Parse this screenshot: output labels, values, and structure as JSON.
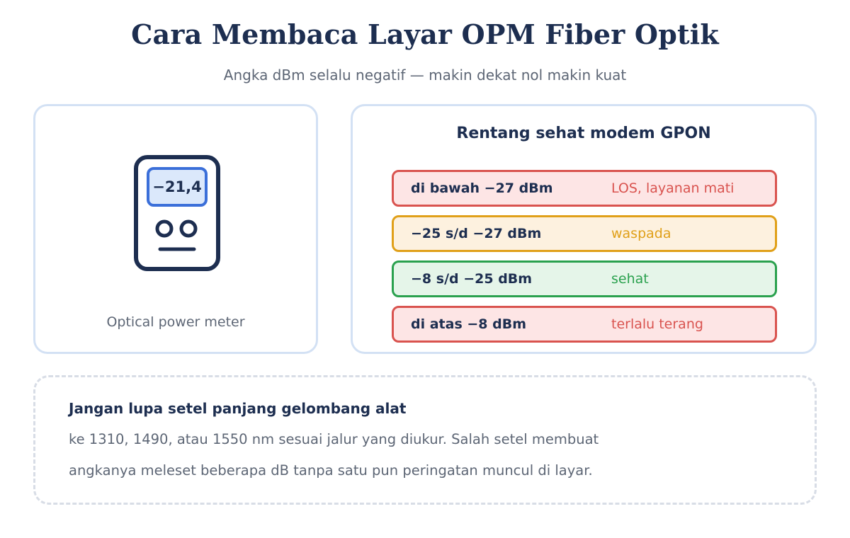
{
  "header": {
    "title": "Cara Membaca Layar OPM Fiber Optik",
    "subtitle": "Angka dBm selalu negatif — makin dekat nol makin kuat"
  },
  "device_card": {
    "reading": "−21,4",
    "caption": "Optical power meter",
    "icon": "optical-power-meter-icon"
  },
  "range_card": {
    "title": "Rentang sehat modem GPON",
    "rows": [
      {
        "range": "di bawah −27 dBm",
        "status": "LOS, layanan mati",
        "color": "#d9534f",
        "bg": "#fde5e5"
      },
      {
        "range": "−25 s/d −27 dBm",
        "status": "waspada",
        "color": "#e0a019",
        "bg": "#fdf1df"
      },
      {
        "range": "−8 s/d −25 dBm",
        "status": "sehat",
        "color": "#2aa14e",
        "bg": "#e5f5e9"
      },
      {
        "range": "di atas −8 dBm",
        "status": "terlalu terang",
        "color": "#d9534f",
        "bg": "#fde5e5"
      }
    ]
  },
  "note": {
    "heading": "Jangan lupa setel panjang gelombang alat",
    "lines": [
      "ke 1310, 1490, atau 1550 nm sesuai jalur yang diukur. Salah setel membuat",
      "angkanya meleset beberapa dB tanpa satu pun peringatan muncul di layar."
    ]
  }
}
